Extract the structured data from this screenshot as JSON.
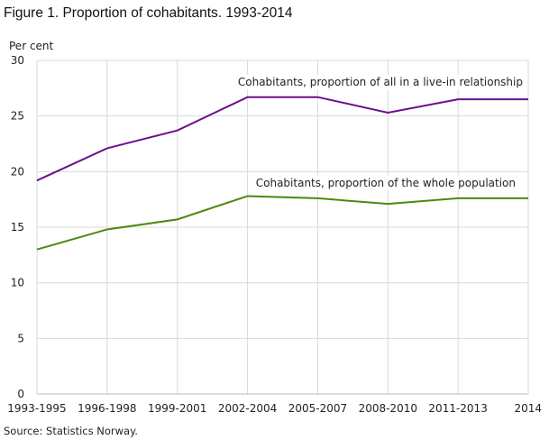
{
  "chart_data": {
    "type": "line",
    "title": "Figure 1. Proportion of cohabitants. 1993-2014",
    "ylabel": "Per cent",
    "xlabel": "",
    "ylim": [
      0,
      30
    ],
    "yticks": [
      0,
      5,
      10,
      15,
      20,
      25,
      30
    ],
    "grid": true,
    "categories": [
      "1993-1995",
      "1996-1998",
      "1999-2001",
      "2002-2004",
      "2005-2007",
      "2008-2010",
      "2011-2013",
      "2014"
    ],
    "series": [
      {
        "name": "Cohabitants, proportion of all in a live-in relationship",
        "color": "#6e0f8c",
        "values": [
          19.2,
          22.1,
          23.7,
          26.7,
          26.7,
          25.3,
          26.5,
          26.5
        ]
      },
      {
        "name": "Cohabitants, proportion of the whole population",
        "color": "#4a8a0c",
        "values": [
          13.0,
          14.8,
          15.7,
          17.8,
          17.6,
          17.1,
          17.6,
          17.6
        ]
      }
    ],
    "source": "Source: Statistics Norway."
  }
}
